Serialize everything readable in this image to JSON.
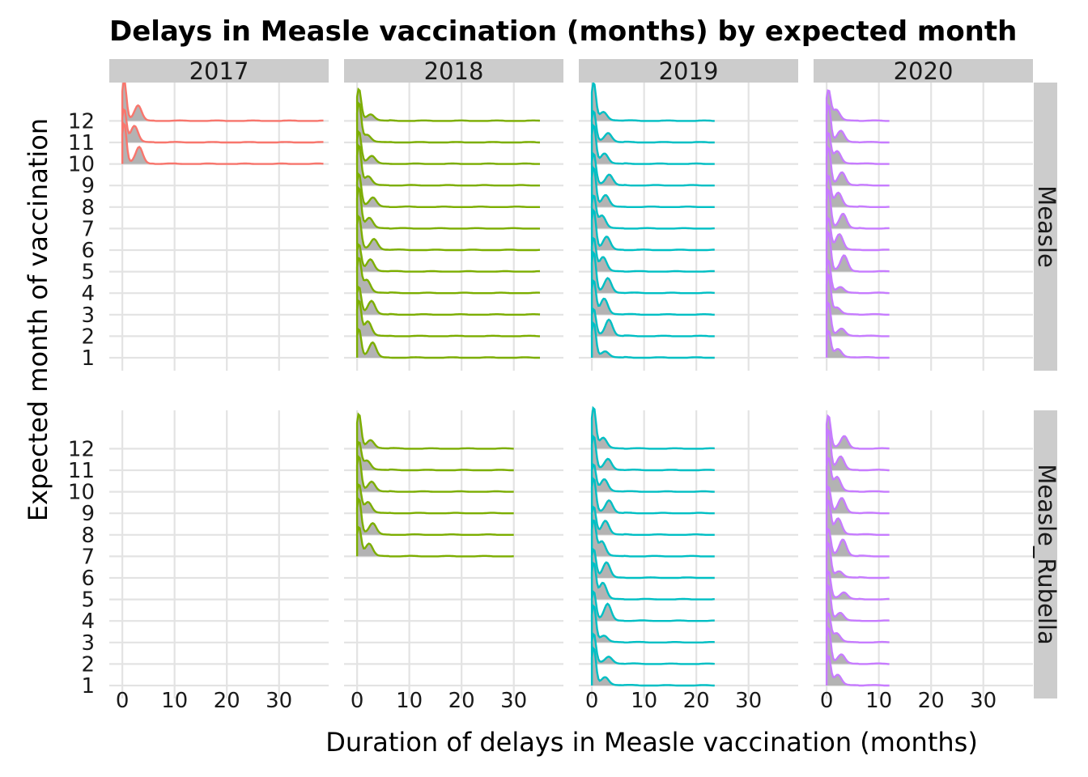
{
  "chart_data": {
    "type": "ridgeline",
    "title": "Delays in Measle vaccination (months) by expected month",
    "xlabel": "Duration of delays in Measle vaccination (months)",
    "ylabel": "Expected month of vaccination",
    "columns": [
      "2017",
      "2018",
      "2019",
      "2020"
    ],
    "rows": [
      "Measle",
      "Measle_Rubella"
    ],
    "x_ticks": [
      0,
      10,
      20,
      30
    ],
    "xlim": [
      -2.5,
      39.5
    ],
    "y_categories": [
      "1",
      "2",
      "3",
      "4",
      "5",
      "6",
      "7",
      "8",
      "9",
      "10",
      "11",
      "12"
    ],
    "colors": {
      "2017": "#F8766D",
      "2018": "#7CAE00",
      "2019": "#00BFC4",
      "2020": "#C77CFF",
      "ridge_fill": "#b3b3b3"
    },
    "panels": [
      {
        "row": "Measle",
        "year": "2017",
        "months": [
          10,
          11,
          12
        ],
        "x_max": 38.5
      },
      {
        "row": "Measle",
        "year": "2018",
        "months": [
          1,
          2,
          3,
          4,
          5,
          6,
          7,
          8,
          9,
          10,
          11,
          12
        ],
        "x_max": 35
      },
      {
        "row": "Measle",
        "year": "2019",
        "months": [
          1,
          2,
          3,
          4,
          5,
          6,
          7,
          8,
          9,
          10,
          11,
          12
        ],
        "x_max": 23.5
      },
      {
        "row": "Measle",
        "year": "2020",
        "months": [
          1,
          2,
          3,
          4,
          5,
          6,
          7,
          8,
          9,
          10,
          11,
          12
        ],
        "x_max": 12
      },
      {
        "row": "Measle_Rubella",
        "year": "2017",
        "months": [],
        "x_max": 0
      },
      {
        "row": "Measle_Rubella",
        "year": "2018",
        "months": [
          7,
          8,
          9,
          10,
          11,
          12
        ],
        "x_max": 30
      },
      {
        "row": "Measle_Rubella",
        "year": "2019",
        "months": [
          1,
          2,
          3,
          4,
          5,
          6,
          7,
          8,
          9,
          10,
          11,
          12
        ],
        "x_max": 23.5
      },
      {
        "row": "Measle_Rubella",
        "year": "2020",
        "months": [
          1,
          2,
          3,
          4,
          5,
          6,
          7,
          8,
          9,
          10,
          11,
          12
        ],
        "x_max": 12
      }
    ]
  }
}
